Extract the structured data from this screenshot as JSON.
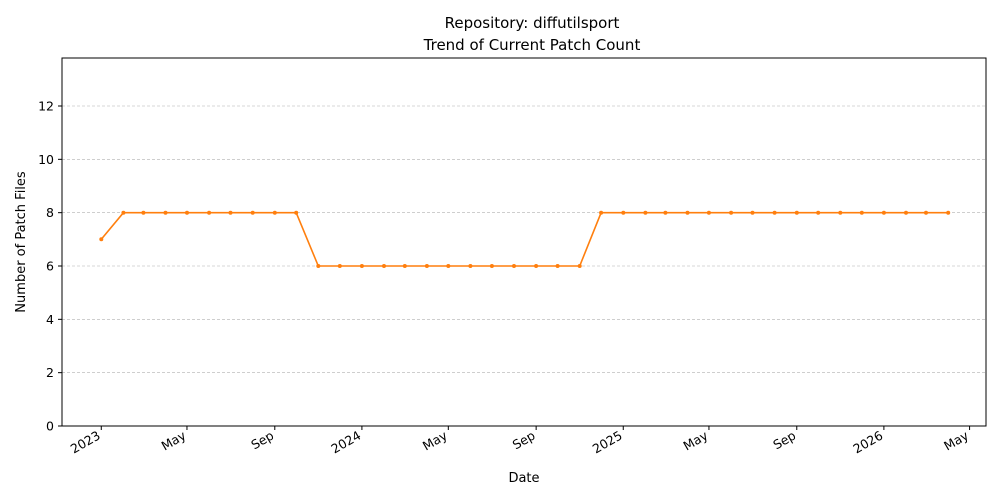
{
  "chart_data": {
    "type": "line",
    "title": "Repository: diffutilsport",
    "subtitle": "Trend of Current Patch Count",
    "xlabel": "Date",
    "ylabel": "Number of Patch Files",
    "ylim": [
      0,
      13.8
    ],
    "xlim": [
      "2022-11-07",
      "2026-05-24"
    ],
    "y_ticks": [
      0,
      2,
      4,
      6,
      8,
      10,
      12
    ],
    "x_ticks": [
      {
        "date": "2023-01-01",
        "label": "2023"
      },
      {
        "date": "2023-05-01",
        "label": "May"
      },
      {
        "date": "2023-09-01",
        "label": "Sep"
      },
      {
        "date": "2024-01-01",
        "label": "2024"
      },
      {
        "date": "2024-05-01",
        "label": "May"
      },
      {
        "date": "2024-09-01",
        "label": "Sep"
      },
      {
        "date": "2025-01-01",
        "label": "2025"
      },
      {
        "date": "2025-05-01",
        "label": "May"
      },
      {
        "date": "2025-09-01",
        "label": "Sep"
      },
      {
        "date": "2026-01-01",
        "label": "2026"
      },
      {
        "date": "2026-05-01",
        "label": "May"
      }
    ],
    "grid": "y",
    "line_color": "#ff7f0e",
    "series": [
      {
        "x": [
          "2023-01-01",
          "2023-02-01",
          "2023-03-01",
          "2023-04-01",
          "2023-05-01",
          "2023-06-01",
          "2023-07-01",
          "2023-08-01",
          "2023-09-01",
          "2023-10-01",
          "2023-11-01",
          "2023-12-01",
          "2024-01-01",
          "2024-02-01",
          "2024-03-01",
          "2024-04-01",
          "2024-05-01",
          "2024-06-01",
          "2024-07-01",
          "2024-08-01",
          "2024-09-01",
          "2024-10-01",
          "2024-11-01",
          "2024-12-01",
          "2025-01-01",
          "2025-02-01",
          "2025-03-01",
          "2025-04-01",
          "2025-05-01",
          "2025-06-01",
          "2025-07-01",
          "2025-08-01",
          "2025-09-01",
          "2025-10-01",
          "2025-11-01",
          "2025-12-01",
          "2026-01-01",
          "2026-02-01",
          "2026-03-01",
          "2026-04-01"
        ],
        "values": [
          7,
          8,
          8,
          8,
          8,
          8,
          8,
          8,
          8,
          8,
          6,
          6,
          6,
          6,
          6,
          6,
          6,
          6,
          6,
          6,
          6,
          6,
          6,
          8,
          8,
          8,
          8,
          8,
          8,
          8,
          8,
          8,
          8,
          8,
          8,
          8,
          8,
          8,
          8,
          8
        ]
      }
    ]
  }
}
